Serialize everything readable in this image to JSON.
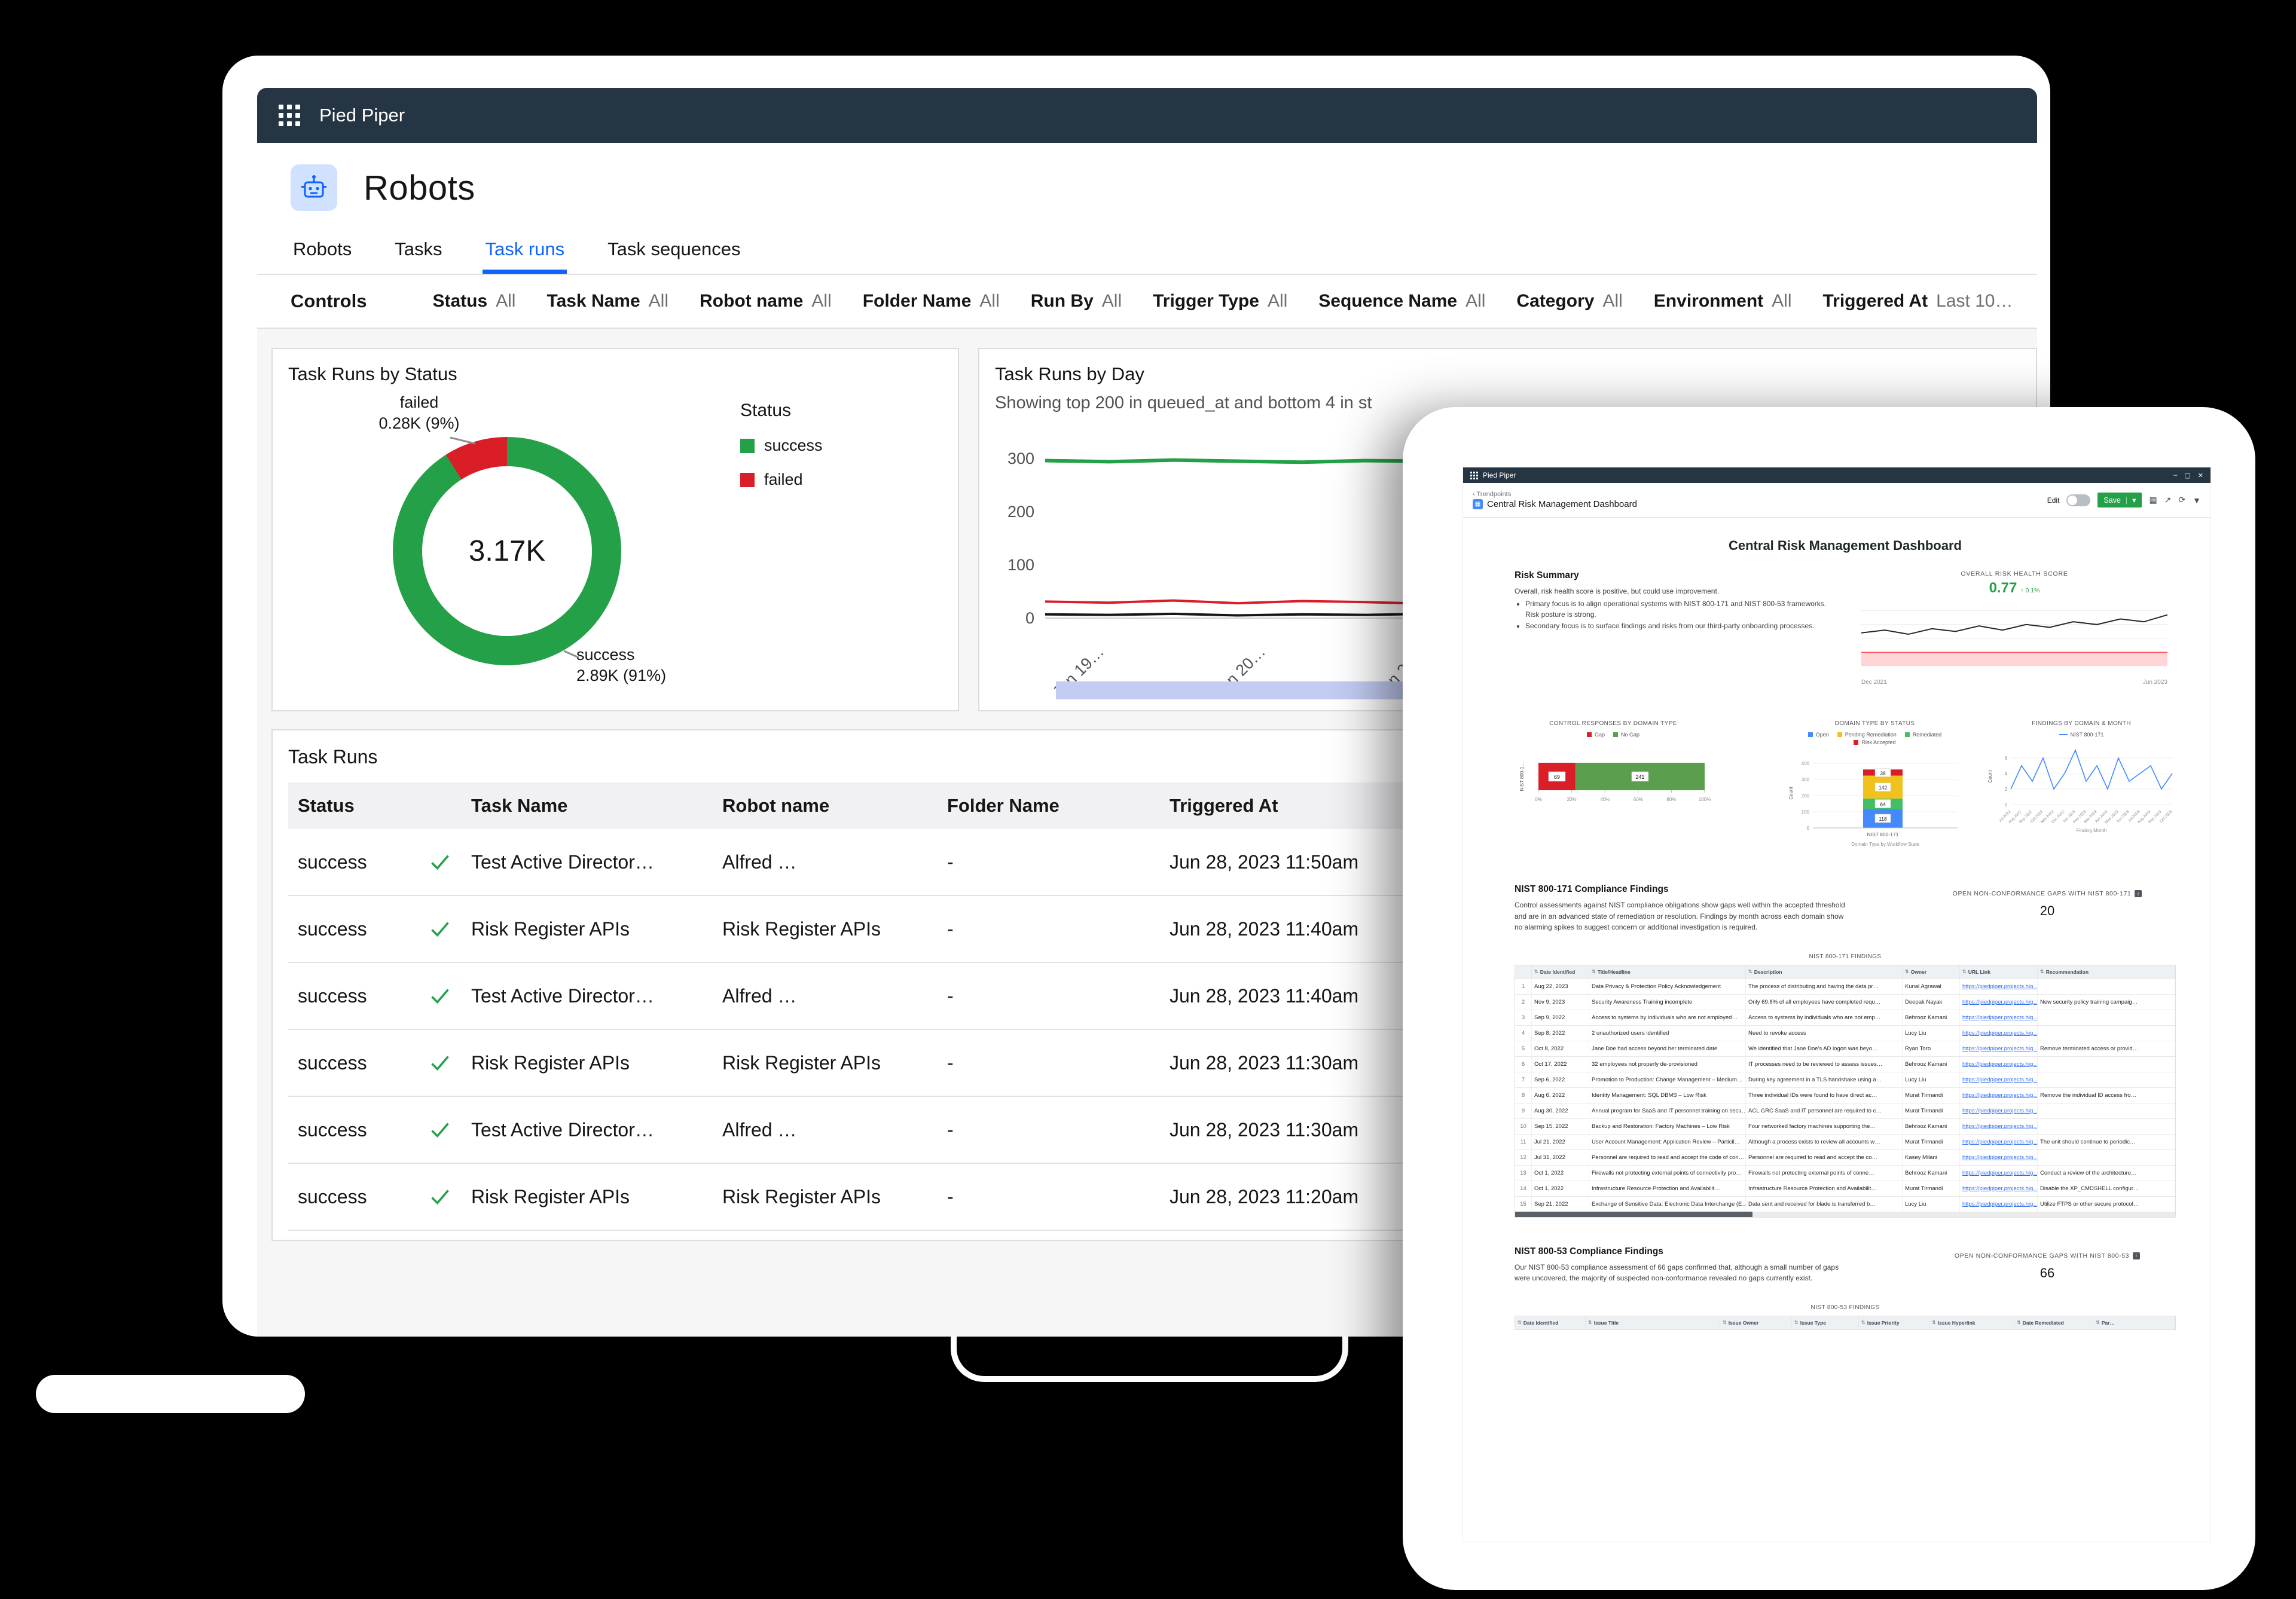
{
  "laptop": {
    "header": {
      "app_name": "Pied Piper"
    },
    "page_title": "Robots",
    "tabs": [
      {
        "label": "Robots"
      },
      {
        "label": "Tasks"
      },
      {
        "label": "Task runs"
      },
      {
        "label": "Task sequences"
      }
    ],
    "controls": {
      "label": "Controls",
      "filters": [
        {
          "name": "Status",
          "value": "All"
        },
        {
          "name": "Task Name",
          "value": "All"
        },
        {
          "name": "Robot name",
          "value": "All"
        },
        {
          "name": "Folder Name",
          "value": "All"
        },
        {
          "name": "Run By",
          "value": "All"
        },
        {
          "name": "Trigger Type",
          "value": "All"
        },
        {
          "name": "Sequence Name",
          "value": "All"
        },
        {
          "name": "Category",
          "value": "All"
        },
        {
          "name": "Environment",
          "value": "All"
        },
        {
          "name": "Triggered At",
          "value": "Last 10…"
        }
      ]
    },
    "status_card": {
      "title": "Task Runs by Status",
      "total": "3.17K",
      "legend_title": "Status",
      "callout_failed_line1": "failed",
      "callout_failed_line2": "0.28K (9%)",
      "callout_success_line1": "success",
      "callout_success_line2": "2.89K (91%)",
      "chart_data": {
        "type": "pie",
        "slices": [
          {
            "label": "success",
            "value_text": "2.89K",
            "pct": 91,
            "color": "#24a148"
          },
          {
            "label": "failed",
            "value_text": "0.28K",
            "pct": 9,
            "color": "#da1e28"
          }
        ]
      }
    },
    "day_card": {
      "title": "Task Runs by Day",
      "subtitle": "Showing top 200 in queued_at and bottom 4 in st",
      "chart_data": {
        "type": "line",
        "y_ticks": [
          0,
          100,
          200,
          300
        ],
        "x_tick_labels": [
          "Jun 19…",
          "Jun 20…",
          "Jun 21…"
        ],
        "series": [
          {
            "name": "success",
            "color": "#24a148",
            "values": [
              296,
              294,
              297,
              295,
              293,
              296,
              295,
              297,
              294,
              296,
              295,
              293,
              296,
              294,
              297,
              295
            ]
          },
          {
            "name": "failed",
            "color": "#da1e28",
            "values": [
              31,
              29,
              33,
              28,
              32,
              30,
              27,
              31,
              29,
              33,
              28,
              30,
              32,
              29,
              31,
              30
            ]
          },
          {
            "name": "other",
            "color": "#161616",
            "values": [
              7,
              6,
              8,
              5,
              7,
              6,
              8,
              6,
              7,
              5,
              8,
              6,
              7,
              8,
              6,
              7
            ]
          }
        ]
      }
    },
    "table_card": {
      "title": "Task Runs",
      "columns": [
        "Status",
        "Task Name",
        "Robot name",
        "Folder Name",
        "Triggered At"
      ],
      "rows": [
        {
          "status": "success",
          "task": "Test Active Director…",
          "robot": "Alfred …",
          "folder": "-",
          "time": "Jun 28, 2023 11:50am"
        },
        {
          "status": "success",
          "task": "Risk Register APIs",
          "robot": "Risk Register APIs",
          "folder": "-",
          "time": "Jun 28, 2023 11:40am"
        },
        {
          "status": "success",
          "task": "Test Active Director…",
          "robot": "Alfred …",
          "folder": "-",
          "time": "Jun 28, 2023 11:40am"
        },
        {
          "status": "success",
          "task": "Risk Register APIs",
          "robot": "Risk Register APIs",
          "folder": "-",
          "time": "Jun 28, 2023 11:30am"
        },
        {
          "status": "success",
          "task": "Test Active Director…",
          "robot": "Alfred …",
          "folder": "-",
          "time": "Jun 28, 2023 11:30am"
        },
        {
          "status": "success",
          "task": "Risk Register APIs",
          "robot": "Risk Register APIs",
          "folder": "-",
          "time": "Jun 28, 2023 11:20am"
        }
      ]
    }
  },
  "tablet": {
    "titlebar": {
      "app_name": "Pied Piper",
      "icons": [
        {
          "name": "minimize",
          "glyph": "–"
        },
        {
          "name": "maximize",
          "glyph": "▢"
        },
        {
          "name": "close",
          "glyph": "✕"
        }
      ]
    },
    "toolbar": {
      "breadcrumb": "‹ Trendpoints",
      "title": "Central Risk Management Dashboard",
      "edit_label": "Edit",
      "save_label": "Save",
      "save_caret": "▾",
      "icons": [
        {
          "name": "grid-view",
          "glyph": "▦"
        },
        {
          "name": "share",
          "glyph": "↗"
        },
        {
          "name": "refresh",
          "glyph": "⟳"
        },
        {
          "name": "filter-dropdown",
          "glyph": "▼"
        }
      ]
    },
    "dashboard_title": "Central Risk Management Dashboard",
    "risk_summary": {
      "heading": "Risk Summary",
      "intro": "Overall, risk health score is positive, but could use improvement.",
      "bullets": [
        "Primary focus is to align operational systems with NIST 800-171 and NIST 800-53 frameworks. Risk posture is strong.",
        "Secondary focus is to surface findings and risks from our third-party onboarding processes."
      ]
    },
    "risk_score": {
      "caption": "OVERALL RISK HEALTH SCORE",
      "value": "0.77",
      "delta": "↑ 0.1%",
      "x_start_label": "Dec 2021",
      "x_end_label": "Jun 2023",
      "chart_data": {
        "type": "line",
        "values": [
          0.64,
          0.66,
          0.63,
          0.67,
          0.65,
          0.69,
          0.66,
          0.7,
          0.68,
          0.72,
          0.7,
          0.74,
          0.72,
          0.77
        ],
        "band": [
          0.4,
          0.5
        ],
        "y_range": [
          0.35,
          0.85
        ]
      }
    },
    "panels": [
      {
        "title": "CONTROL RESPONSES BY DOMAIN TYPE",
        "legend": [
          {
            "label": "Gap",
            "color": "#da1e28"
          },
          {
            "label": "No Gap",
            "color": "#5b9e4d"
          }
        ],
        "category": "NIST 800-1…",
        "chart_data": {
          "type": "bar",
          "segments": [
            {
              "label": "Gap",
              "value": 69,
              "color": "#da1e28"
            },
            {
              "label": "No Gap",
              "value": 241,
              "color": "#5b9e4d"
            }
          ],
          "x_ticks": [
            "0%",
            "20%",
            "40%",
            "60%",
            "80%",
            "100%"
          ]
        }
      },
      {
        "title": "DOMAIN TYPE BY STATUS",
        "legend": [
          {
            "label": "Open",
            "color": "#4589ff"
          },
          {
            "label": "Pending Remediation",
            "color": "#f1c21b"
          },
          {
            "label": "Remediated",
            "color": "#42be65"
          },
          {
            "label": "Risk Accepted",
            "color": "#da1e28"
          }
        ],
        "x_label": "NIST 800-171",
        "axis_caption": "Domain Type by Workflow State",
        "y_label": "Count",
        "chart_data": {
          "type": "bar",
          "segments": [
            {
              "label": "Open",
              "value": 118,
              "color": "#4589ff"
            },
            {
              "label": "Remediated",
              "value": 64,
              "color": "#42be65"
            },
            {
              "label": "Pending Remediation",
              "value": 142,
              "color": "#f1c21b"
            },
            {
              "label": "Risk Accepted",
              "value": 38,
              "color": "#da1e28"
            }
          ],
          "y_ticks": [
            0,
            100,
            200,
            300,
            400
          ]
        }
      },
      {
        "title": "FINDINGS BY DOMAIN & MONTH",
        "legend": [
          {
            "label": "NIST 800-171",
            "color": "#4589ff"
          }
        ],
        "y_label": "Count",
        "x_caption": "Finding Month",
        "chart_data": {
          "type": "line",
          "x": [
            "Jul 2022",
            "Aug 2022",
            "Sep 2022",
            "Oct 2022",
            "Nov 2022",
            "Dec 2022",
            "Jan 2023",
            "Feb 2023",
            "Mar 2023",
            "Apr 2023",
            "May 2023",
            "Jun 2023",
            "Jul 2023",
            "Aug 2023",
            "Sep 2023",
            "Oct 2023"
          ],
          "values": [
            2,
            5,
            3,
            6,
            2,
            4,
            7,
            3,
            5,
            2,
            6,
            3,
            4,
            5,
            2,
            4
          ],
          "y_ticks": [
            0,
            2,
            4,
            6
          ]
        }
      }
    ],
    "nist171": {
      "heading": "NIST 800-171 Compliance Findings",
      "body": "Control assessments against NIST compliance obligations show gaps well within the accepted threshold and are in an advanced state of remediation or resolution. Findings by month across each domain show no alarming spikes to suggest concern or additional investigation is required.",
      "gap_caption": "OPEN NON-CONFORMANCE GAPS WITH NIST 800-171",
      "gap_value": "20",
      "table_caption": "NIST 800-171 FINDINGS",
      "columns": [
        "Date Identified",
        "Title/Headline",
        "Description",
        "Owner",
        "URL Link",
        "Recommendation"
      ],
      "rows": [
        {
          "n": "1",
          "date": "Aug 22, 2023",
          "title": "Data Privacy & Protection Policy Acknowledgement",
          "desc": "The process of distributing and having the data pr…",
          "owner": "Kunal Agrawal",
          "url": "https://piedpiper.projects.hig…",
          "rec": ""
        },
        {
          "n": "2",
          "date": "Nov 9, 2023",
          "title": "Security Awareness Training incomplete",
          "desc": "Only 69.8% of all employees have completed requ…",
          "owner": "Deepak Nayak",
          "url": "https://piedpiper.projects.hig…",
          "rec": "New security policy training campaig…"
        },
        {
          "n": "3",
          "date": "Sep 9, 2022",
          "title": "Access to systems by individuals who are not employed…",
          "desc": "Access to systems by individuals who are not emp…",
          "owner": "Behrooz Kamani",
          "url": "https://piedpiper.projects.hig…",
          "rec": ""
        },
        {
          "n": "4",
          "date": "Sep 8, 2022",
          "title": "2 unauthorized users identified",
          "desc": "Need to revoke access",
          "owner": "Lucy Liu",
          "url": "https://piedpiper.projects.hig…",
          "rec": ""
        },
        {
          "n": "5",
          "date": "Oct 8, 2022",
          "title": "Jane Doe had access beyond her terminated date",
          "desc": "We identified that Jane Doe's AD logon was beyo…",
          "owner": "Ryan Toro",
          "url": "https://piedpiper.projects.hig…",
          "rec": "Remove terminated access or provid…"
        },
        {
          "n": "6",
          "date": "Oct 17, 2022",
          "title": "32 employees not properly de-provisioned",
          "desc": "IT processes need to be reviewed to assess issues…",
          "owner": "Behrooz Kamani",
          "url": "https://piedpiper.projects.hig…",
          "rec": ""
        },
        {
          "n": "7",
          "date": "Sep 6, 2022",
          "title": "Promotion to Production: Change Management – Medium…",
          "desc": "During key agreement in a TLS handshake using a…",
          "owner": "Lucy Liu",
          "url": "https://piedpiper.projects.hig…",
          "rec": ""
        },
        {
          "n": "8",
          "date": "Aug 6, 2022",
          "title": "Identity Management: SQL DBMS – Low Risk",
          "desc": "Three individual IDs were found to have direct ac…",
          "owner": "Murat Tirmandi",
          "url": "https://piedpiper.projects.hig…",
          "rec": "Remove the individual ID access fro…"
        },
        {
          "n": "9",
          "date": "Aug 30, 2022",
          "title": "Annual program for SaaS and IT personnel training on secu…",
          "desc": "ACL GRC SaaS and IT personnel are required to c…",
          "owner": "Murat Tirmandi",
          "url": "https://piedpiper.projects.hig…",
          "rec": ""
        },
        {
          "n": "10",
          "date": "Sep 15, 2022",
          "title": "Backup and Restoration: Factory Machines – Low Risk",
          "desc": "Four networked factory machines supporting the…",
          "owner": "Behrooz Kamani",
          "url": "https://piedpiper.projects.hig…",
          "rec": ""
        },
        {
          "n": "11",
          "date": "Jul 21, 2022",
          "title": "User Account Management: Application Review – Particil…",
          "desc": "Although a process exists to review all accounts w…",
          "owner": "Murat Tirmandi",
          "url": "https://piedpiper.projects.hig…",
          "rec": "The unit should continue to periodic…"
        },
        {
          "n": "12",
          "date": "Jul 31, 2022",
          "title": "Personnel are required to read and accept the code of con…",
          "desc": "Personnel are required to read and accept the co…",
          "owner": "Kasey Milani",
          "url": "https://piedpiper.projects.hig…",
          "rec": ""
        },
        {
          "n": "13",
          "date": "Oct 1, 2022",
          "title": "Firewalls not protecting external points of connectivity pro…",
          "desc": "Firewalls not protecting external points of conne…",
          "owner": "Behrooz Kamani",
          "url": "https://piedpiper.projects.hig…",
          "rec": "Conduct a review of the architecture…"
        },
        {
          "n": "14",
          "date": "Oct 1, 2022",
          "title": "Infrastructure Resource Protection and Availabilit…",
          "desc": "Infrastructure Resource Protection and Availabilit…",
          "owner": "Murat Tirmandi",
          "url": "https://piedpiper.projects.hig…",
          "rec": "Disable the XP_CMDSHELL configur…"
        },
        {
          "n": "15",
          "date": "Sep 21, 2022",
          "title": "Exchange of Sensitive Data: Electronic Data Interchange (E…",
          "desc": "Data sent and received for blade is transferred b…",
          "owner": "Lucy Liu",
          "url": "https://piedpiper.projects.hig…",
          "rec": "Utilize FTPS or other secure protocol…"
        }
      ]
    },
    "nist53": {
      "heading": "NIST 800-53 Compliance Findings",
      "body": "Our NIST 800-53 compliance assessment of 66 gaps confirmed that, although a small number of gaps were uncovered, the majority of suspected non-conformance revealed no gaps currently exist.",
      "gap_caption": "OPEN NON-CONFORMANCE GAPS WITH NIST 800-53",
      "gap_value": "66",
      "table_caption": "NIST 800-53 FINDINGS",
      "columns": [
        "Date Identified",
        "Issue Title",
        "Issue Owner",
        "Issue Type",
        "Issue Priority",
        "Issue Hyperlink",
        "Date Remediated",
        "Par…"
      ]
    }
  }
}
